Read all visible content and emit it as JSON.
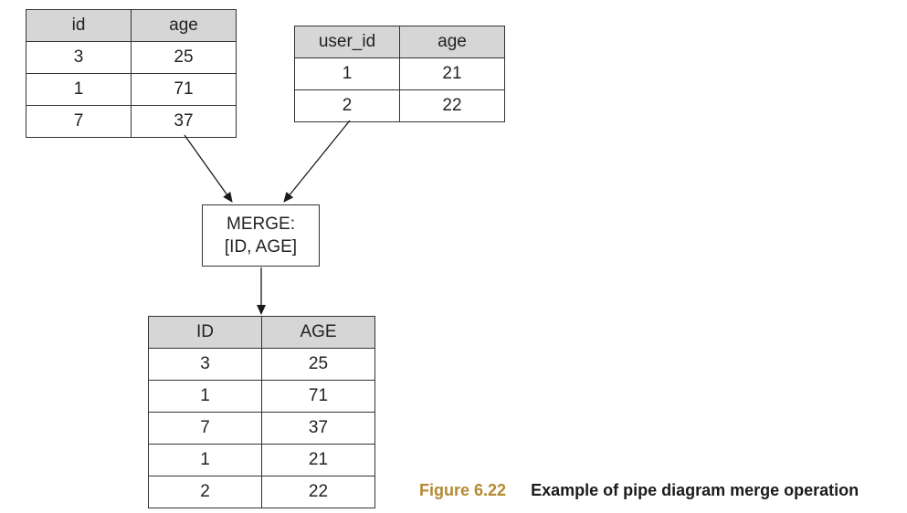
{
  "input_table_1": {
    "headers": [
      "id",
      "age"
    ],
    "rows": [
      [
        "3",
        "25"
      ],
      [
        "1",
        "71"
      ],
      [
        "7",
        "37"
      ]
    ]
  },
  "input_table_2": {
    "headers": [
      "user_id",
      "age"
    ],
    "rows": [
      [
        "1",
        "21"
      ],
      [
        "2",
        "22"
      ]
    ]
  },
  "merge_node": {
    "line1": "MERGE:",
    "line2": "[ID, AGE]"
  },
  "output_table": {
    "headers": [
      "ID",
      "AGE"
    ],
    "rows": [
      [
        "3",
        "25"
      ],
      [
        "1",
        "71"
      ],
      [
        "7",
        "37"
      ],
      [
        "1",
        "21"
      ],
      [
        "2",
        "22"
      ]
    ]
  },
  "caption": {
    "figure_number": "Figure 6.22",
    "text": "Example of pipe diagram merge operation"
  },
  "colors": {
    "header_fill": "#d6d6d6",
    "caption_accent": "#b5892f"
  }
}
